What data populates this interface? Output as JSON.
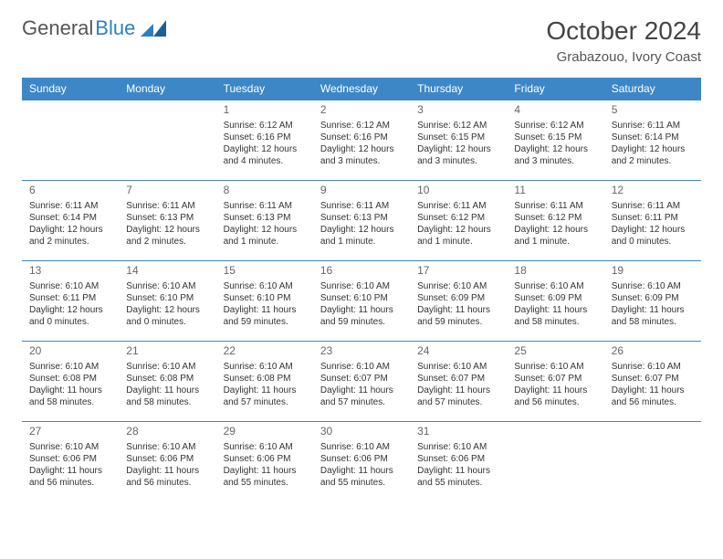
{
  "logo": {
    "text1": "General",
    "text2": "Blue"
  },
  "title": "October 2024",
  "location": "Grabazouo, Ivory Coast",
  "colors": {
    "header_bg": "#3d87c6",
    "header_text": "#ffffff",
    "border": "#3d87c6",
    "text": "#333333",
    "daynum": "#666666"
  },
  "daynames": [
    "Sunday",
    "Monday",
    "Tuesday",
    "Wednesday",
    "Thursday",
    "Friday",
    "Saturday"
  ],
  "weeks": [
    [
      null,
      null,
      {
        "n": "1",
        "rise": "Sunrise: 6:12 AM",
        "set": "Sunset: 6:16 PM",
        "dl1": "Daylight: 12 hours",
        "dl2": "and 4 minutes."
      },
      {
        "n": "2",
        "rise": "Sunrise: 6:12 AM",
        "set": "Sunset: 6:16 PM",
        "dl1": "Daylight: 12 hours",
        "dl2": "and 3 minutes."
      },
      {
        "n": "3",
        "rise": "Sunrise: 6:12 AM",
        "set": "Sunset: 6:15 PM",
        "dl1": "Daylight: 12 hours",
        "dl2": "and 3 minutes."
      },
      {
        "n": "4",
        "rise": "Sunrise: 6:12 AM",
        "set": "Sunset: 6:15 PM",
        "dl1": "Daylight: 12 hours",
        "dl2": "and 3 minutes."
      },
      {
        "n": "5",
        "rise": "Sunrise: 6:11 AM",
        "set": "Sunset: 6:14 PM",
        "dl1": "Daylight: 12 hours",
        "dl2": "and 2 minutes."
      }
    ],
    [
      {
        "n": "6",
        "rise": "Sunrise: 6:11 AM",
        "set": "Sunset: 6:14 PM",
        "dl1": "Daylight: 12 hours",
        "dl2": "and 2 minutes."
      },
      {
        "n": "7",
        "rise": "Sunrise: 6:11 AM",
        "set": "Sunset: 6:13 PM",
        "dl1": "Daylight: 12 hours",
        "dl2": "and 2 minutes."
      },
      {
        "n": "8",
        "rise": "Sunrise: 6:11 AM",
        "set": "Sunset: 6:13 PM",
        "dl1": "Daylight: 12 hours",
        "dl2": "and 1 minute."
      },
      {
        "n": "9",
        "rise": "Sunrise: 6:11 AM",
        "set": "Sunset: 6:13 PM",
        "dl1": "Daylight: 12 hours",
        "dl2": "and 1 minute."
      },
      {
        "n": "10",
        "rise": "Sunrise: 6:11 AM",
        "set": "Sunset: 6:12 PM",
        "dl1": "Daylight: 12 hours",
        "dl2": "and 1 minute."
      },
      {
        "n": "11",
        "rise": "Sunrise: 6:11 AM",
        "set": "Sunset: 6:12 PM",
        "dl1": "Daylight: 12 hours",
        "dl2": "and 1 minute."
      },
      {
        "n": "12",
        "rise": "Sunrise: 6:11 AM",
        "set": "Sunset: 6:11 PM",
        "dl1": "Daylight: 12 hours",
        "dl2": "and 0 minutes."
      }
    ],
    [
      {
        "n": "13",
        "rise": "Sunrise: 6:10 AM",
        "set": "Sunset: 6:11 PM",
        "dl1": "Daylight: 12 hours",
        "dl2": "and 0 minutes."
      },
      {
        "n": "14",
        "rise": "Sunrise: 6:10 AM",
        "set": "Sunset: 6:10 PM",
        "dl1": "Daylight: 12 hours",
        "dl2": "and 0 minutes."
      },
      {
        "n": "15",
        "rise": "Sunrise: 6:10 AM",
        "set": "Sunset: 6:10 PM",
        "dl1": "Daylight: 11 hours",
        "dl2": "and 59 minutes."
      },
      {
        "n": "16",
        "rise": "Sunrise: 6:10 AM",
        "set": "Sunset: 6:10 PM",
        "dl1": "Daylight: 11 hours",
        "dl2": "and 59 minutes."
      },
      {
        "n": "17",
        "rise": "Sunrise: 6:10 AM",
        "set": "Sunset: 6:09 PM",
        "dl1": "Daylight: 11 hours",
        "dl2": "and 59 minutes."
      },
      {
        "n": "18",
        "rise": "Sunrise: 6:10 AM",
        "set": "Sunset: 6:09 PM",
        "dl1": "Daylight: 11 hours",
        "dl2": "and 58 minutes."
      },
      {
        "n": "19",
        "rise": "Sunrise: 6:10 AM",
        "set": "Sunset: 6:09 PM",
        "dl1": "Daylight: 11 hours",
        "dl2": "and 58 minutes."
      }
    ],
    [
      {
        "n": "20",
        "rise": "Sunrise: 6:10 AM",
        "set": "Sunset: 6:08 PM",
        "dl1": "Daylight: 11 hours",
        "dl2": "and 58 minutes."
      },
      {
        "n": "21",
        "rise": "Sunrise: 6:10 AM",
        "set": "Sunset: 6:08 PM",
        "dl1": "Daylight: 11 hours",
        "dl2": "and 58 minutes."
      },
      {
        "n": "22",
        "rise": "Sunrise: 6:10 AM",
        "set": "Sunset: 6:08 PM",
        "dl1": "Daylight: 11 hours",
        "dl2": "and 57 minutes."
      },
      {
        "n": "23",
        "rise": "Sunrise: 6:10 AM",
        "set": "Sunset: 6:07 PM",
        "dl1": "Daylight: 11 hours",
        "dl2": "and 57 minutes."
      },
      {
        "n": "24",
        "rise": "Sunrise: 6:10 AM",
        "set": "Sunset: 6:07 PM",
        "dl1": "Daylight: 11 hours",
        "dl2": "and 57 minutes."
      },
      {
        "n": "25",
        "rise": "Sunrise: 6:10 AM",
        "set": "Sunset: 6:07 PM",
        "dl1": "Daylight: 11 hours",
        "dl2": "and 56 minutes."
      },
      {
        "n": "26",
        "rise": "Sunrise: 6:10 AM",
        "set": "Sunset: 6:07 PM",
        "dl1": "Daylight: 11 hours",
        "dl2": "and 56 minutes."
      }
    ],
    [
      {
        "n": "27",
        "rise": "Sunrise: 6:10 AM",
        "set": "Sunset: 6:06 PM",
        "dl1": "Daylight: 11 hours",
        "dl2": "and 56 minutes."
      },
      {
        "n": "28",
        "rise": "Sunrise: 6:10 AM",
        "set": "Sunset: 6:06 PM",
        "dl1": "Daylight: 11 hours",
        "dl2": "and 56 minutes."
      },
      {
        "n": "29",
        "rise": "Sunrise: 6:10 AM",
        "set": "Sunset: 6:06 PM",
        "dl1": "Daylight: 11 hours",
        "dl2": "and 55 minutes."
      },
      {
        "n": "30",
        "rise": "Sunrise: 6:10 AM",
        "set": "Sunset: 6:06 PM",
        "dl1": "Daylight: 11 hours",
        "dl2": "and 55 minutes."
      },
      {
        "n": "31",
        "rise": "Sunrise: 6:10 AM",
        "set": "Sunset: 6:06 PM",
        "dl1": "Daylight: 11 hours",
        "dl2": "and 55 minutes."
      },
      null,
      null
    ]
  ]
}
